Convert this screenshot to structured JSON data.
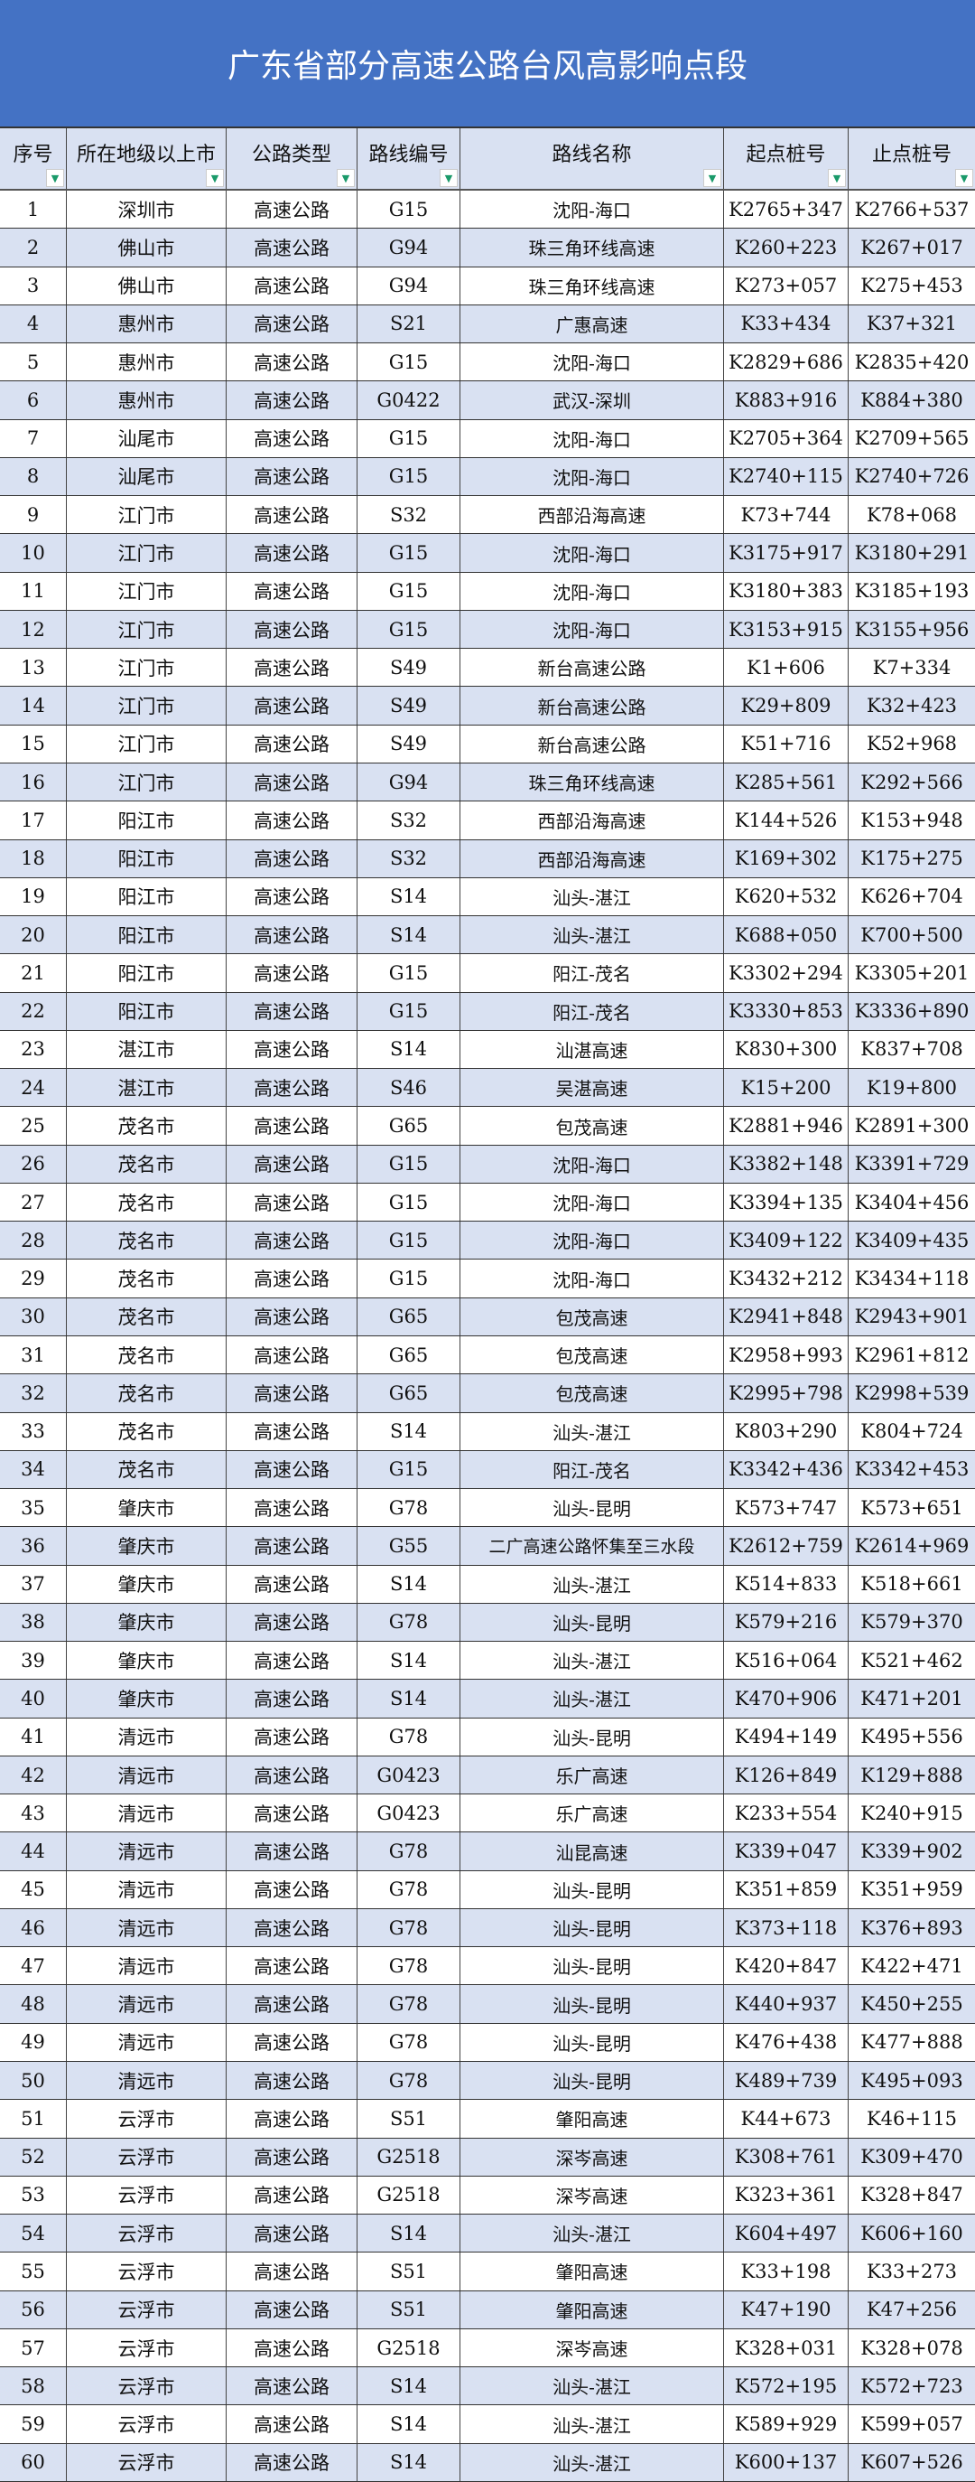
{
  "title": "广东省部分高速公路台风高影响点段",
  "colors": {
    "title_bg": "#4472c4",
    "stripe": "#d9e1f2",
    "filter_arrow": "#1a9a6a"
  },
  "columns": [
    "序号",
    "所在地级以上市",
    "公路类型",
    "路线编号",
    "路线名称",
    "起点桩号",
    "止点桩号"
  ],
  "filter_icon": "filter-dropdown-icon",
  "rows": [
    [
      "1",
      "深圳市",
      "高速公路",
      "G15",
      "沈阳-海口",
      "K2765+347",
      "K2766+537"
    ],
    [
      "2",
      "佛山市",
      "高速公路",
      "G94",
      "珠三角环线高速",
      "K260+223",
      "K267+017"
    ],
    [
      "3",
      "佛山市",
      "高速公路",
      "G94",
      "珠三角环线高速",
      "K273+057",
      "K275+453"
    ],
    [
      "4",
      "惠州市",
      "高速公路",
      "S21",
      "广惠高速",
      "K33+434",
      "K37+321"
    ],
    [
      "5",
      "惠州市",
      "高速公路",
      "G15",
      "沈阳-海口",
      "K2829+686",
      "K2835+420"
    ],
    [
      "6",
      "惠州市",
      "高速公路",
      "G0422",
      "武汉-深圳",
      "K883+916",
      "K884+380"
    ],
    [
      "7",
      "汕尾市",
      "高速公路",
      "G15",
      "沈阳-海口",
      "K2705+364",
      "K2709+565"
    ],
    [
      "8",
      "汕尾市",
      "高速公路",
      "G15",
      "沈阳-海口",
      "K2740+115",
      "K2740+726"
    ],
    [
      "9",
      "江门市",
      "高速公路",
      "S32",
      "西部沿海高速",
      "K73+744",
      "K78+068"
    ],
    [
      "10",
      "江门市",
      "高速公路",
      "G15",
      "沈阳-海口",
      "K3175+917",
      "K3180+291"
    ],
    [
      "11",
      "江门市",
      "高速公路",
      "G15",
      "沈阳-海口",
      "K3180+383",
      "K3185+193"
    ],
    [
      "12",
      "江门市",
      "高速公路",
      "G15",
      "沈阳-海口",
      "K3153+915",
      "K3155+956"
    ],
    [
      "13",
      "江门市",
      "高速公路",
      "S49",
      "新台高速公路",
      "K1+606",
      "K7+334"
    ],
    [
      "14",
      "江门市",
      "高速公路",
      "S49",
      "新台高速公路",
      "K29+809",
      "K32+423"
    ],
    [
      "15",
      "江门市",
      "高速公路",
      "S49",
      "新台高速公路",
      "K51+716",
      "K52+968"
    ],
    [
      "16",
      "江门市",
      "高速公路",
      "G94",
      "珠三角环线高速",
      "K285+561",
      "K292+566"
    ],
    [
      "17",
      "阳江市",
      "高速公路",
      "S32",
      "西部沿海高速",
      "K144+526",
      "K153+948"
    ],
    [
      "18",
      "阳江市",
      "高速公路",
      "S32",
      "西部沿海高速",
      "K169+302",
      "K175+275"
    ],
    [
      "19",
      "阳江市",
      "高速公路",
      "S14",
      "汕头-湛江",
      "K620+532",
      "K626+704"
    ],
    [
      "20",
      "阳江市",
      "高速公路",
      "S14",
      "汕头-湛江",
      "K688+050",
      "K700+500"
    ],
    [
      "21",
      "阳江市",
      "高速公路",
      "G15",
      "阳江-茂名",
      "K3302+294",
      "K3305+201"
    ],
    [
      "22",
      "阳江市",
      "高速公路",
      "G15",
      "阳江-茂名",
      "K3330+853",
      "K3336+890"
    ],
    [
      "23",
      "湛江市",
      "高速公路",
      "S14",
      "汕湛高速",
      "K830+300",
      "K837+708"
    ],
    [
      "24",
      "湛江市",
      "高速公路",
      "S46",
      "吴湛高速",
      "K15+200",
      "K19+800"
    ],
    [
      "25",
      "茂名市",
      "高速公路",
      "G65",
      "包茂高速",
      "K2881+946",
      "K2891+300"
    ],
    [
      "26",
      "茂名市",
      "高速公路",
      "G15",
      "沈阳-海口",
      "K3382+148",
      "K3391+729"
    ],
    [
      "27",
      "茂名市",
      "高速公路",
      "G15",
      "沈阳-海口",
      "K3394+135",
      "K3404+456"
    ],
    [
      "28",
      "茂名市",
      "高速公路",
      "G15",
      "沈阳-海口",
      "K3409+122",
      "K3409+435"
    ],
    [
      "29",
      "茂名市",
      "高速公路",
      "G15",
      "沈阳-海口",
      "K3432+212",
      "K3434+118"
    ],
    [
      "30",
      "茂名市",
      "高速公路",
      "G65",
      "包茂高速",
      "K2941+848",
      "K2943+901"
    ],
    [
      "31",
      "茂名市",
      "高速公路",
      "G65",
      "包茂高速",
      "K2958+993",
      "K2961+812"
    ],
    [
      "32",
      "茂名市",
      "高速公路",
      "G65",
      "包茂高速",
      "K2995+798",
      "K2998+539"
    ],
    [
      "33",
      "茂名市",
      "高速公路",
      "S14",
      "汕头-湛江",
      "K803+290",
      "K804+724"
    ],
    [
      "34",
      "茂名市",
      "高速公路",
      "G15",
      "阳江-茂名",
      "K3342+436",
      "K3342+453"
    ],
    [
      "35",
      "肇庆市",
      "高速公路",
      "G78",
      "汕头-昆明",
      "K573+747",
      "K573+651"
    ],
    [
      "36",
      "肇庆市",
      "高速公路",
      "G55",
      "二广高速公路怀集至三水段",
      "K2612+759",
      "K2614+969"
    ],
    [
      "37",
      "肇庆市",
      "高速公路",
      "S14",
      "汕头-湛江",
      "K514+833",
      "K518+661"
    ],
    [
      "38",
      "肇庆市",
      "高速公路",
      "G78",
      "汕头-昆明",
      "K579+216",
      "K579+370"
    ],
    [
      "39",
      "肇庆市",
      "高速公路",
      "S14",
      "汕头-湛江",
      "K516+064",
      "K521+462"
    ],
    [
      "40",
      "肇庆市",
      "高速公路",
      "S14",
      "汕头-湛江",
      "K470+906",
      "K471+201"
    ],
    [
      "41",
      "清远市",
      "高速公路",
      "G78",
      "汕头-昆明",
      "K494+149",
      "K495+556"
    ],
    [
      "42",
      "清远市",
      "高速公路",
      "G0423",
      "乐广高速",
      "K126+849",
      "K129+888"
    ],
    [
      "43",
      "清远市",
      "高速公路",
      "G0423",
      "乐广高速",
      "K233+554",
      "K240+915"
    ],
    [
      "44",
      "清远市",
      "高速公路",
      "G78",
      "汕昆高速",
      "K339+047",
      "K339+902"
    ],
    [
      "45",
      "清远市",
      "高速公路",
      "G78",
      "汕头-昆明",
      "K351+859",
      "K351+959"
    ],
    [
      "46",
      "清远市",
      "高速公路",
      "G78",
      "汕头-昆明",
      "K373+118",
      "K376+893"
    ],
    [
      "47",
      "清远市",
      "高速公路",
      "G78",
      "汕头-昆明",
      "K420+847",
      "K422+471"
    ],
    [
      "48",
      "清远市",
      "高速公路",
      "G78",
      "汕头-昆明",
      "K440+937",
      "K450+255"
    ],
    [
      "49",
      "清远市",
      "高速公路",
      "G78",
      "汕头-昆明",
      "K476+438",
      "K477+888"
    ],
    [
      "50",
      "清远市",
      "高速公路",
      "G78",
      "汕头-昆明",
      "K489+739",
      "K495+093"
    ],
    [
      "51",
      "云浮市",
      "高速公路",
      "S51",
      "肇阳高速",
      "K44+673",
      "K46+115"
    ],
    [
      "52",
      "云浮市",
      "高速公路",
      "G2518",
      "深岑高速",
      "K308+761",
      "K309+470"
    ],
    [
      "53",
      "云浮市",
      "高速公路",
      "G2518",
      "深岑高速",
      "K323+361",
      "K328+847"
    ],
    [
      "54",
      "云浮市",
      "高速公路",
      "S14",
      "汕头-湛江",
      "K604+497",
      "K606+160"
    ],
    [
      "55",
      "云浮市",
      "高速公路",
      "S51",
      "肇阳高速",
      "K33+198",
      "K33+273"
    ],
    [
      "56",
      "云浮市",
      "高速公路",
      "S51",
      "肇阳高速",
      "K47+190",
      "K47+256"
    ],
    [
      "57",
      "云浮市",
      "高速公路",
      "G2518",
      "深岑高速",
      "K328+031",
      "K328+078"
    ],
    [
      "58",
      "云浮市",
      "高速公路",
      "S14",
      "汕头-湛江",
      "K572+195",
      "K572+723"
    ],
    [
      "59",
      "云浮市",
      "高速公路",
      "S14",
      "汕头-湛江",
      "K589+929",
      "K599+057"
    ],
    [
      "60",
      "云浮市",
      "高速公路",
      "S14",
      "汕头-湛江",
      "K600+137",
      "K607+526"
    ]
  ]
}
